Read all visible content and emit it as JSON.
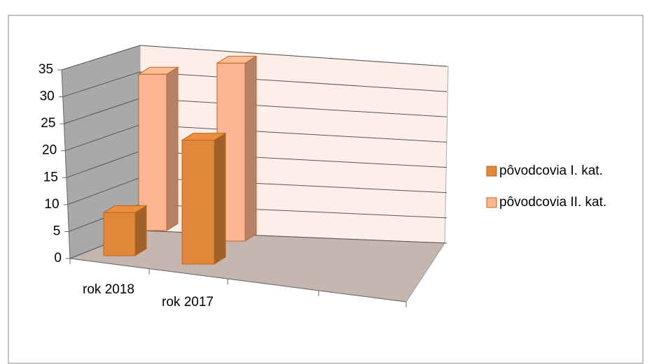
{
  "chart_data": {
    "type": "bar3d",
    "categories": [
      "rok 2018",
      "rok 2017"
    ],
    "series": [
      {
        "name": "pôvodcovia I. kat.",
        "color": "#e0873a",
        "values": [
          8,
          23
        ]
      },
      {
        "name": "pôvodcovia II. kat.",
        "color": "#fbb590",
        "values": [
          29,
          33
        ]
      }
    ],
    "ylim": [
      0,
      35
    ],
    "yticks": [
      0,
      5,
      10,
      15,
      20,
      25,
      30,
      35
    ],
    "grid": true,
    "legend": "right"
  }
}
